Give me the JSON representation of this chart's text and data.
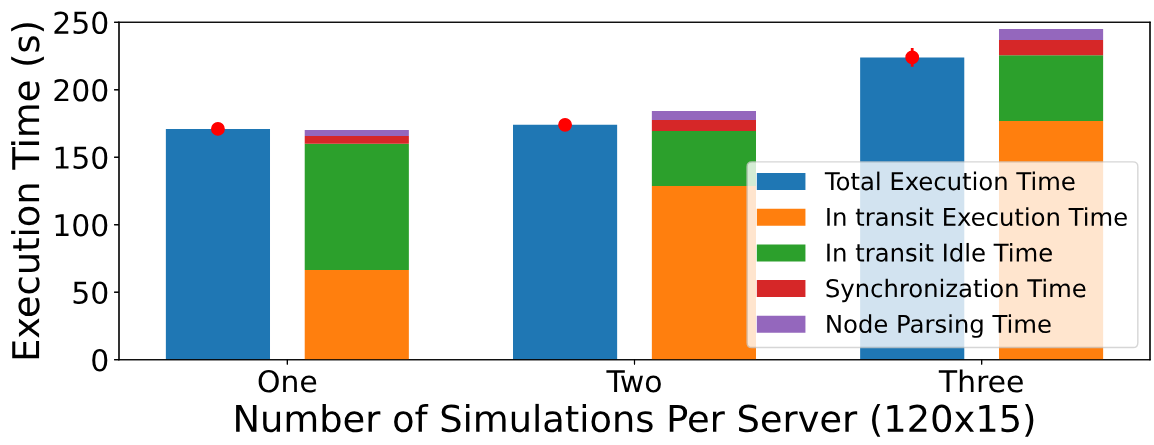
{
  "chart_data": [
    {
      "type": "bar",
      "ylabel": "Execution Time (s)",
      "categories": [
        "One",
        "Two",
        "Three"
      ],
      "series": [
        {
          "name": "Total Execution Time",
          "color": "#1f77b4",
          "values": [
            171,
            174,
            224
          ]
        },
        {
          "type": "scatter",
          "color": "#ff0000",
          "x": [
            "One",
            "Two",
            "Three"
          ],
          "values": [
            171,
            174,
            224
          ],
          "errors": [
            null,
            null,
            7
          ]
        }
      ],
      "marker": "circle",
      "ylim": [
        0,
        250
      ],
      "yticks": [
        0,
        50,
        100,
        150,
        200,
        250
      ],
      "tick_labels": "y"
    },
    {
      "type": "bar",
      "stacked": true,
      "xlabel": "Number of Simulations Per Server (120x15)",
      "categories": [
        "One",
        "Two",
        "Three"
      ],
      "series": [
        {
          "name": "In transit Execution Time",
          "color": "#ff7f0e",
          "values": [
            66.5,
            128.7,
            176.9
          ]
        },
        {
          "name": "In transit Idle Time",
          "color": "#2ca02c",
          "values": [
            93.5,
            40.8,
            48.6
          ]
        },
        {
          "name": "Synchronization Time",
          "color": "#d62728",
          "values": [
            5.7,
            8.1,
            11.4
          ]
        },
        {
          "name": "Node Parsing Time",
          "color": "#9467bd",
          "values": [
            4.5,
            6.7,
            8.1
          ]
        }
      ],
      "ylim": [
        0,
        250
      ],
      "yticks": [
        0,
        50,
        100,
        150,
        200,
        250
      ],
      "tick_labels": "x",
      "legend": "bottom right"
    }
  ]
}
